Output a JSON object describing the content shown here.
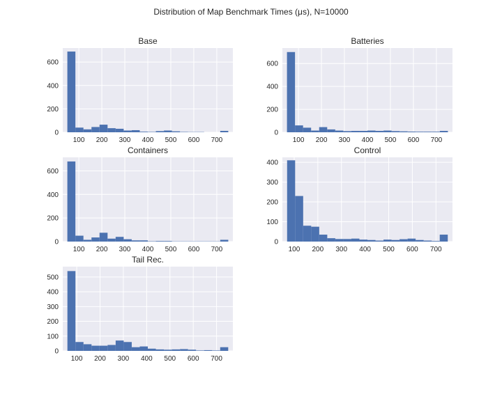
{
  "figure": {
    "title": "Distribution of Map Benchmark Times (μs), N=10000",
    "bar_color": "#4c72b0",
    "background_color": "#eaeaf2",
    "grid": true
  },
  "chart_data": [
    {
      "type": "histogram",
      "title": "Base",
      "bin_edges": [
        50,
        85,
        120,
        155,
        190,
        225,
        260,
        295,
        330,
        365,
        400,
        435,
        470,
        505,
        540,
        575,
        610,
        645,
        680,
        715,
        750
      ],
      "counts": [
        690,
        40,
        25,
        45,
        65,
        35,
        30,
        15,
        18,
        5,
        3,
        10,
        15,
        8,
        3,
        2,
        2,
        0,
        0,
        12
      ],
      "xlim": [
        30,
        770
      ],
      "ylim": [
        0,
        720
      ],
      "xticks": [
        100,
        200,
        300,
        400,
        500,
        600,
        700
      ],
      "yticks": [
        0,
        200,
        400,
        600
      ]
    },
    {
      "type": "histogram",
      "title": "Batteries",
      "bin_edges": [
        50,
        85,
        120,
        155,
        190,
        225,
        260,
        295,
        330,
        365,
        400,
        435,
        470,
        505,
        540,
        575,
        610,
        645,
        680,
        715,
        750
      ],
      "counts": [
        700,
        60,
        40,
        15,
        45,
        25,
        15,
        10,
        12,
        12,
        15,
        12,
        15,
        10,
        8,
        6,
        5,
        5,
        5,
        12
      ],
      "xlim": [
        30,
        770
      ],
      "ylim": [
        0,
        735
      ],
      "xticks": [
        100,
        200,
        300,
        400,
        500,
        600,
        700
      ],
      "yticks": [
        0,
        200,
        400,
        600
      ]
    },
    {
      "type": "histogram",
      "title": "Containers",
      "bin_edges": [
        50,
        85,
        120,
        155,
        190,
        225,
        260,
        295,
        330,
        365,
        400,
        435,
        470,
        505,
        540,
        575,
        610,
        645,
        680,
        715,
        750
      ],
      "counts": [
        680,
        50,
        15,
        35,
        75,
        25,
        40,
        20,
        10,
        10,
        3,
        5,
        5,
        2,
        2,
        2,
        2,
        2,
        2,
        15
      ],
      "xlim": [
        30,
        770
      ],
      "ylim": [
        0,
        715
      ],
      "xticks": [
        100,
        200,
        300,
        400,
        500,
        600,
        700
      ],
      "yticks": [
        0,
        200,
        400,
        600
      ]
    },
    {
      "type": "histogram",
      "title": "Control",
      "bin_edges": [
        70,
        104,
        138,
        172,
        206,
        240,
        274,
        308,
        342,
        376,
        410,
        444,
        478,
        512,
        546,
        580,
        614,
        648,
        682,
        716,
        750
      ],
      "counts": [
        410,
        230,
        80,
        75,
        35,
        17,
        13,
        13,
        15,
        10,
        8,
        5,
        10,
        8,
        12,
        15,
        8,
        5,
        3,
        35
      ],
      "xlim": [
        50,
        770
      ],
      "ylim": [
        0,
        425
      ],
      "xticks": [
        100,
        200,
        300,
        400,
        500,
        600,
        700
      ],
      "yticks": [
        0,
        100,
        200,
        300,
        400
      ]
    },
    {
      "type": "histogram",
      "title": "Tail Rec.",
      "bin_edges": [
        60,
        94.5,
        129,
        163.5,
        198,
        232.5,
        267,
        301.5,
        336,
        370.5,
        405,
        439.5,
        474,
        508.5,
        543,
        577.5,
        612,
        646.5,
        681,
        715.5,
        750
      ],
      "counts": [
        540,
        60,
        45,
        35,
        35,
        40,
        70,
        60,
        25,
        30,
        15,
        10,
        8,
        10,
        12,
        8,
        3,
        5,
        3,
        25
      ],
      "xlim": [
        40,
        770
      ],
      "ylim": [
        0,
        570
      ],
      "xticks": [
        100,
        200,
        300,
        400,
        500,
        600,
        700
      ],
      "yticks": [
        0,
        100,
        200,
        300,
        400,
        500
      ]
    }
  ]
}
